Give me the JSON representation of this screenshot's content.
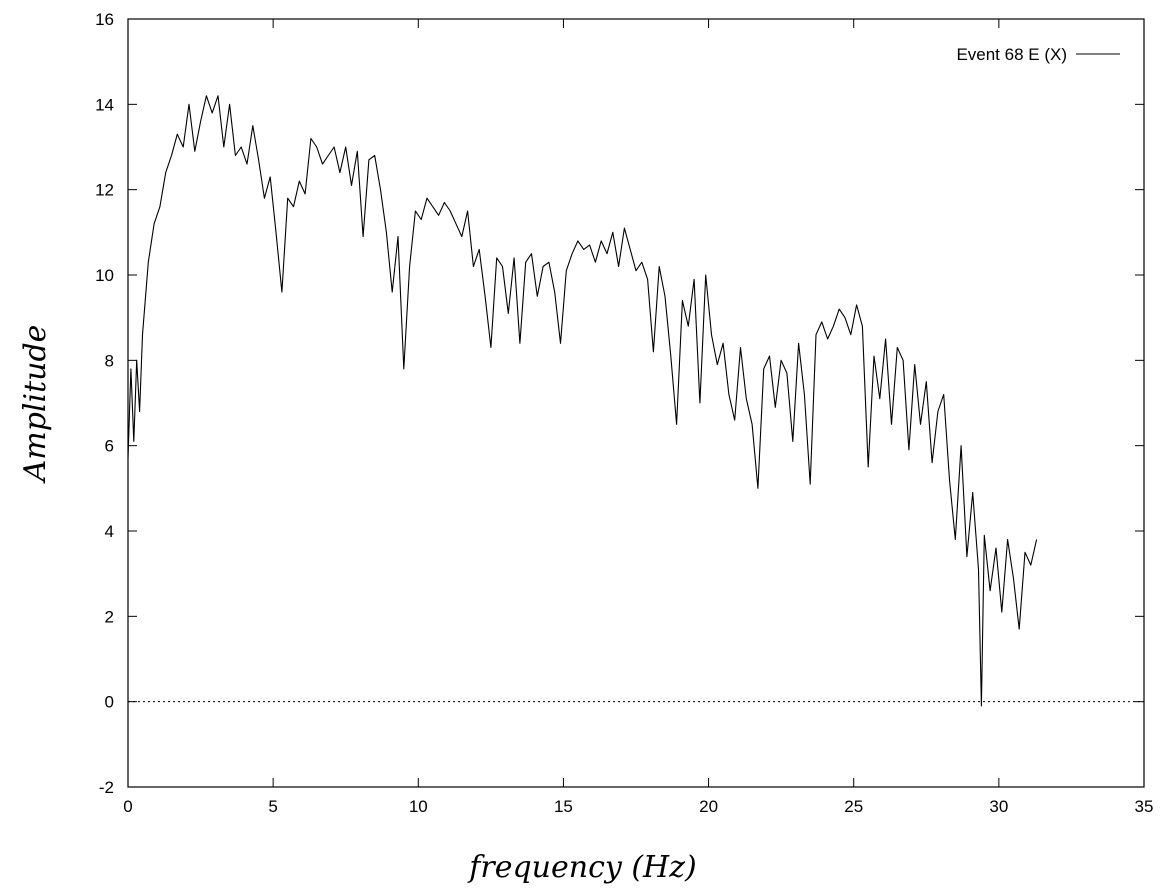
{
  "chart_data": {
    "type": "line",
    "xlabel": "frequency (Hz)",
    "ylabel": "Amplitude",
    "xlim": [
      0,
      35
    ],
    "ylim": [
      -2,
      16
    ],
    "xticks": [
      "0",
      "5",
      "10",
      "15",
      "20",
      "25",
      "30",
      "35"
    ],
    "yticks": [
      "-2",
      "0",
      "2",
      "4",
      "6",
      "8",
      "10",
      "12",
      "14",
      "16"
    ],
    "grid": false,
    "zero_line": true,
    "legend_position": "top-right",
    "series": [
      {
        "name": "Event 68 E (X)",
        "color": "#000000",
        "x": [
          0,
          0.1,
          0.2,
          0.3,
          0.4,
          0.5,
          0.7,
          0.9,
          1.1,
          1.3,
          1.5,
          1.7,
          1.9,
          2.1,
          2.3,
          2.5,
          2.7,
          2.9,
          3.1,
          3.3,
          3.5,
          3.7,
          3.9,
          4.1,
          4.3,
          4.5,
          4.7,
          4.9,
          5.1,
          5.3,
          5.5,
          5.7,
          5.9,
          6.1,
          6.3,
          6.5,
          6.7,
          6.9,
          7.1,
          7.3,
          7.5,
          7.7,
          7.9,
          8.1,
          8.3,
          8.5,
          8.7,
          8.9,
          9.1,
          9.3,
          9.5,
          9.7,
          9.9,
          10.1,
          10.3,
          10.5,
          10.7,
          10.9,
          11.1,
          11.3,
          11.5,
          11.7,
          11.9,
          12.1,
          12.3,
          12.5,
          12.7,
          12.9,
          13.1,
          13.3,
          13.5,
          13.7,
          13.9,
          14.1,
          14.3,
          14.5,
          14.7,
          14.9,
          15.1,
          15.3,
          15.5,
          15.7,
          15.9,
          16.1,
          16.3,
          16.5,
          16.7,
          16.9,
          17.1,
          17.3,
          17.5,
          17.7,
          17.9,
          18.1,
          18.3,
          18.5,
          18.7,
          18.9,
          19.1,
          19.3,
          19.5,
          19.7,
          19.9,
          20.1,
          20.3,
          20.5,
          20.7,
          20.9,
          21.1,
          21.3,
          21.5,
          21.7,
          21.9,
          22.1,
          22.3,
          22.5,
          22.7,
          22.9,
          23.1,
          23.3,
          23.5,
          23.7,
          23.9,
          24.1,
          24.3,
          24.5,
          24.7,
          24.9,
          25.1,
          25.3,
          25.5,
          25.7,
          25.9,
          26.1,
          26.3,
          26.5,
          26.7,
          26.9,
          27.1,
          27.3,
          27.5,
          27.7,
          27.9,
          28.1,
          28.3,
          28.5,
          28.7,
          28.9,
          29.1,
          29.3,
          29.4,
          29.5,
          29.7,
          29.9,
          30.1,
          30.3,
          30.5,
          30.7,
          30.9,
          31.1,
          31.3
        ],
        "y": [
          5.7,
          7.8,
          6.1,
          8.0,
          6.8,
          8.6,
          10.3,
          11.2,
          11.6,
          12.4,
          12.8,
          13.3,
          13.0,
          14.0,
          12.9,
          13.6,
          14.2,
          13.8,
          14.2,
          13.0,
          14.0,
          12.8,
          13.0,
          12.6,
          13.5,
          12.7,
          11.8,
          12.3,
          11.0,
          9.6,
          11.8,
          11.6,
          12.2,
          11.9,
          13.2,
          13.0,
          12.6,
          12.8,
          13.0,
          12.4,
          13.0,
          12.1,
          12.9,
          10.9,
          12.7,
          12.8,
          12.0,
          11.0,
          9.6,
          10.9,
          7.8,
          10.2,
          11.5,
          11.3,
          11.8,
          11.6,
          11.4,
          11.7,
          11.5,
          11.2,
          10.9,
          11.5,
          10.2,
          10.6,
          9.5,
          8.3,
          10.4,
          10.2,
          9.1,
          10.4,
          8.4,
          10.3,
          10.5,
          9.5,
          10.2,
          10.3,
          9.6,
          8.4,
          10.1,
          10.5,
          10.8,
          10.6,
          10.7,
          10.3,
          10.8,
          10.5,
          11.0,
          10.2,
          11.1,
          10.6,
          10.1,
          10.3,
          9.9,
          8.2,
          10.2,
          9.5,
          8.1,
          6.5,
          9.4,
          8.8,
          9.9,
          7.0,
          10.0,
          8.6,
          7.9,
          8.4,
          7.2,
          6.6,
          8.3,
          7.1,
          6.5,
          5.0,
          7.8,
          8.1,
          6.9,
          8.0,
          7.7,
          6.1,
          8.4,
          7.2,
          5.1,
          8.6,
          8.9,
          8.5,
          8.8,
          9.2,
          9.0,
          8.6,
          9.3,
          8.8,
          5.5,
          8.1,
          7.1,
          8.5,
          6.5,
          8.3,
          8.0,
          5.9,
          7.9,
          6.5,
          7.5,
          5.6,
          6.8,
          7.2,
          5.2,
          3.8,
          6.0,
          3.4,
          4.9,
          3.1,
          -0.1,
          3.9,
          2.6,
          3.6,
          2.1,
          3.8,
          2.9,
          1.7,
          3.5,
          3.2,
          3.8
        ]
      }
    ]
  }
}
